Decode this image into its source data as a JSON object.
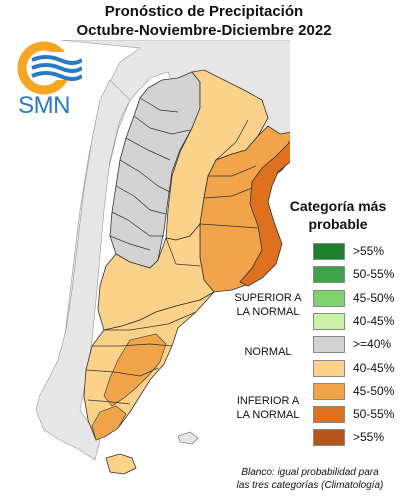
{
  "header": {
    "title_line1": "Pronóstico de Precipitación",
    "title_line2": "Octubre-Noviembre-Diciembre 2022"
  },
  "logo": {
    "text": "SMN",
    "icon": "smn-sun-waves-logo",
    "colors": {
      "orange": "#f6a623",
      "blue": "#2a79c4"
    }
  },
  "legend": {
    "title_line1": "Categoría más",
    "title_line2": "probable",
    "groups": {
      "superior_line1": "SUPERIOR A",
      "superior_line2": "LA NORMAL",
      "normal": "NORMAL",
      "inferior_line1": "INFERIOR A",
      "inferior_line2": "LA NORMAL"
    },
    "categories": [
      {
        "label": ">55%",
        "color": "#1d7f2f",
        "group": "superior"
      },
      {
        "label": "50-55%",
        "color": "#3fa34a",
        "group": "superior"
      },
      {
        "label": "45-50%",
        "color": "#7fd36a",
        "group": "superior"
      },
      {
        "label": "40-45%",
        "color": "#c8f0a6",
        "group": "superior"
      },
      {
        "label": ">=40%",
        "color": "#d3d3d3",
        "group": "normal"
      },
      {
        "label": "40-45%",
        "color": "#fcd18a",
        "group": "inferior"
      },
      {
        "label": "45-50%",
        "color": "#f1a449",
        "group": "inferior"
      },
      {
        "label": "50-55%",
        "color": "#de711f",
        "group": "inferior"
      },
      {
        "label": ">55%",
        "color": "#b4561a",
        "group": "inferior"
      }
    ]
  },
  "footnote": {
    "line1": "Blanco: igual probabilidad para",
    "line2": "las tres categorías (Climatología)"
  },
  "map_colors": {
    "land": "#e6e6e6",
    "border": "#333333",
    "normal": "#d3d3d3",
    "inferior_40_45": "#fcd18a",
    "inferior_45_50": "#f1a449",
    "inferior_50_55": "#de711f"
  }
}
